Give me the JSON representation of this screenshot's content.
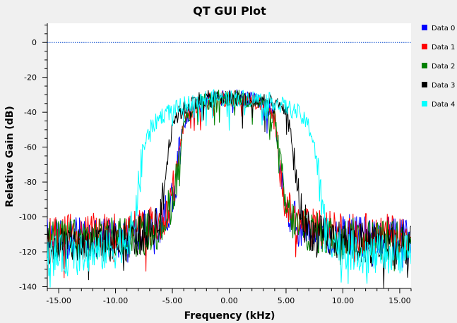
{
  "chart_data": {
    "type": "line",
    "title": "QT GUI Plot",
    "xlabel": "Frequency (kHz)",
    "ylabel": "Relative Gain (dB)",
    "xlim": [
      -16.0,
      16.0
    ],
    "ylim": [
      -141,
      11
    ],
    "x_ticks": [
      -15,
      -10,
      -5,
      0,
      5,
      10,
      15
    ],
    "x_tick_labels": [
      "-15.00",
      "-10.00",
      "-5.00",
      "0.00",
      "5.00",
      "10.00",
      "15.00"
    ],
    "y_ticks": [
      0,
      -20,
      -40,
      -60,
      -80,
      -100,
      -120,
      -140
    ],
    "y_tick_labels": [
      "0",
      "-20",
      "-40",
      "-60",
      "-80",
      "-100",
      "-120",
      "-140"
    ],
    "reference_line": {
      "y": 0,
      "style": "dotted",
      "color": "#0044cc"
    },
    "grid": false,
    "legend_position": "right",
    "series": [
      {
        "name": "Data 0",
        "color": "#0000ff",
        "x": [
          -16,
          -13,
          -10,
          -7.5,
          -6,
          -5,
          -4.5,
          -4,
          -3,
          -1,
          0,
          1,
          3,
          4,
          4.5,
          5,
          6,
          7.5,
          10,
          13,
          16
        ],
        "y": [
          -112,
          -112,
          -111,
          -108,
          -105,
          -90,
          -70,
          -45,
          -36,
          -32,
          -32,
          -32,
          -35,
          -42,
          -70,
          -95,
          -105,
          -108,
          -110,
          -112,
          -112
        ]
      },
      {
        "name": "Data 1",
        "color": "#ff0000",
        "x": [
          -16,
          -13,
          -10,
          -7.5,
          -6,
          -5,
          -4.5,
          -4,
          -3,
          -1,
          0,
          1,
          3,
          4,
          4.5,
          5,
          6,
          7.5,
          10,
          13,
          16
        ],
        "y": [
          -110,
          -110,
          -109,
          -107,
          -103,
          -88,
          -68,
          -45,
          -36,
          -32,
          -32,
          -32,
          -35,
          -43,
          -70,
          -95,
          -104,
          -107,
          -109,
          -110,
          -110
        ]
      },
      {
        "name": "Data 2",
        "color": "#008000",
        "x": [
          -16,
          -13,
          -10,
          -7.5,
          -6,
          -5,
          -4.5,
          -4,
          -3,
          -1,
          0,
          1,
          3,
          4,
          4.5,
          5,
          6,
          7.5,
          10,
          13,
          16
        ],
        "y": [
          -113,
          -113,
          -112,
          -109,
          -106,
          -90,
          -72,
          -46,
          -36,
          -32,
          -32,
          -32,
          -35,
          -43,
          -72,
          -96,
          -106,
          -109,
          -112,
          -113,
          -113
        ]
      },
      {
        "name": "Data 3",
        "color": "#000000",
        "x": [
          -16,
          -13,
          -10,
          -7.5,
          -6,
          -5.5,
          -5,
          -4,
          -3,
          -1,
          0,
          1,
          3,
          5,
          5.5,
          6,
          6.5,
          7.5,
          10,
          13,
          16
        ],
        "y": [
          -116,
          -116,
          -114,
          -110,
          -100,
          -70,
          -45,
          -38,
          -33,
          -32,
          -32,
          -32,
          -34,
          -38,
          -55,
          -85,
          -102,
          -110,
          -114,
          -116,
          -116
        ]
      },
      {
        "name": "Data 4",
        "color": "#00ffff",
        "x": [
          -16,
          -13,
          -10,
          -8.5,
          -8,
          -7.5,
          -7,
          -6,
          -4,
          -2,
          0,
          2,
          4,
          6,
          7,
          7.5,
          8,
          8.5,
          10,
          13,
          16
        ],
        "y": [
          -122,
          -122,
          -118,
          -108,
          -85,
          -60,
          -50,
          -42,
          -36,
          -32,
          -32,
          -32,
          -34,
          -40,
          -48,
          -58,
          -85,
          -108,
          -118,
          -122,
          -120
        ]
      }
    ]
  }
}
